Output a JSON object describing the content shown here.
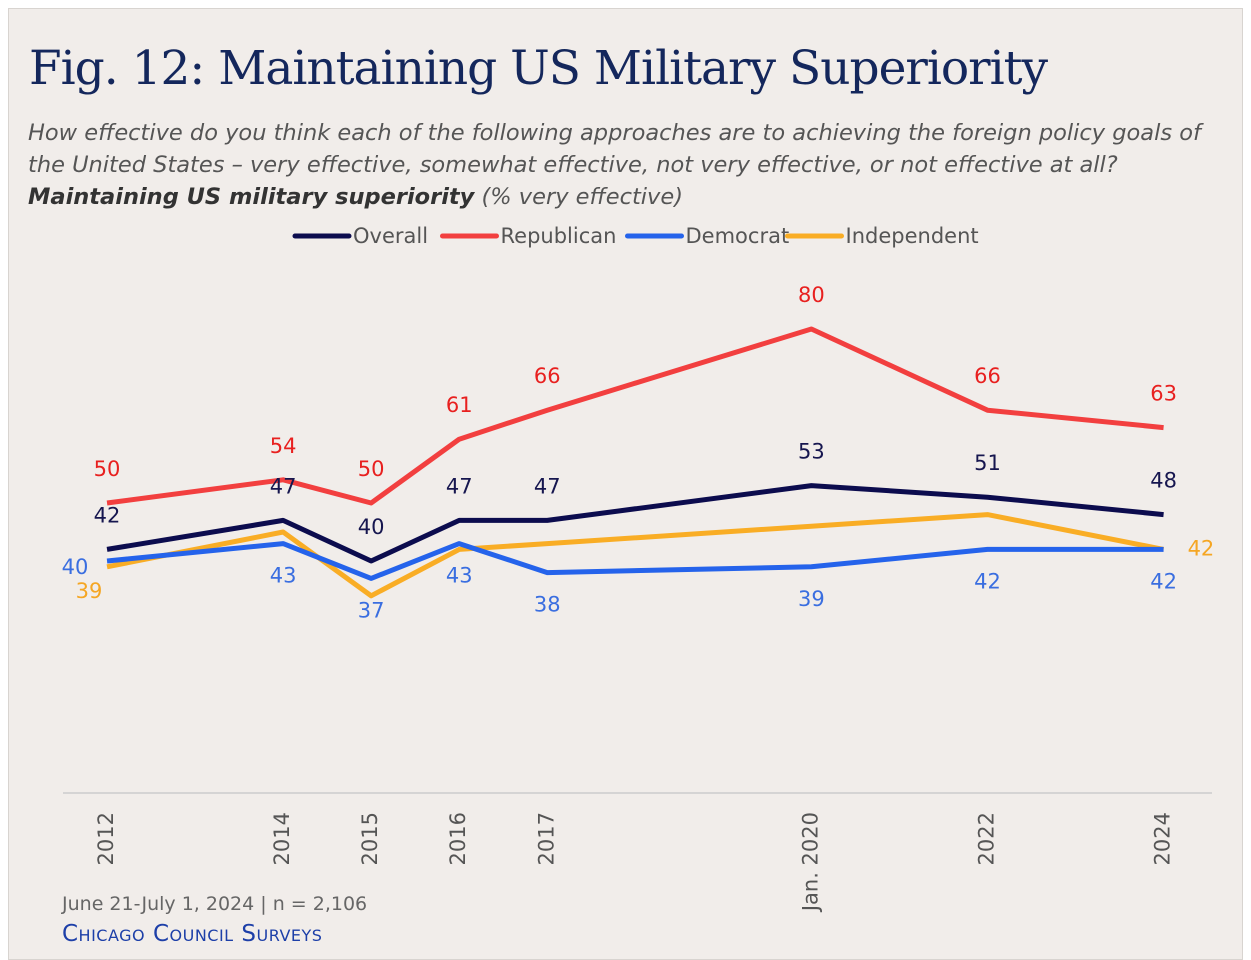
{
  "chart_data": {
    "type": "line",
    "title": "Fig. 12: Maintaining US Military Superiority",
    "subtitle": "How effective do you think each of the following approaches are to achieving the foreign policy goals of the United States – very effective, somewhat effective, not very effective, or not effective at all? ",
    "subtitle_emphasis": "Maintaining US military superiority",
    "subtitle_unit": " (% very effective)",
    "x": [
      2012,
      2014,
      2015,
      2016,
      2017,
      2020,
      2022,
      2024
    ],
    "xlim": [
      2011.5,
      2024.55
    ],
    "xticks": [
      2012,
      2014,
      2015,
      2016,
      2017,
      {
        "value": 2020,
        "label": "Jan. 2020"
      },
      2022,
      2024
    ],
    "ylim": [
      0,
      90
    ],
    "grid": false,
    "legend": "top",
    "series": [
      {
        "name": "Overall",
        "color": "#0c0c4e",
        "values": [
          42,
          47,
          40,
          47,
          47,
          53,
          51,
          48
        ]
      },
      {
        "name": "Republican",
        "color": "#f23f3f",
        "values": [
          50,
          54,
          50,
          61,
          66,
          80,
          66,
          63
        ]
      },
      {
        "name": "Democrat",
        "color": "#2563eb",
        "values": [
          40,
          43,
          37,
          43,
          38,
          39,
          42,
          42
        ]
      },
      {
        "name": "Independent",
        "color": "#f9ad25",
        "values": [
          39,
          45,
          34,
          42,
          43,
          46,
          48,
          42
        ],
        "value_labels": [
          "39",
          null,
          null,
          null,
          null,
          null,
          null,
          "42"
        ]
      }
    ],
    "source": "June 21-July 1, 2024 | n = 2,106",
    "brand": "Chicago Council Surveys"
  }
}
